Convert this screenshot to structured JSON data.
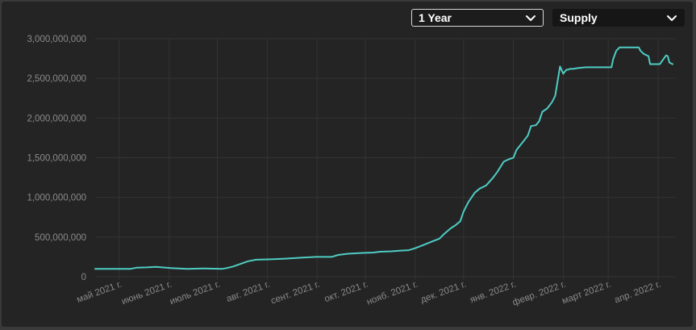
{
  "controls": {
    "range_label": "1 Year",
    "metric_label": "Supply"
  },
  "colors": {
    "background": "#242424",
    "line": "#4ecdc4",
    "grid": "#333333",
    "text": "#8a8a8a"
  },
  "chart_data": {
    "type": "line",
    "title": "",
    "xlabel": "",
    "ylabel": "",
    "ylim": [
      0,
      3000000000
    ],
    "y_ticks": [
      0,
      500000000,
      1000000000,
      1500000000,
      2000000000,
      2500000000,
      3000000000
    ],
    "y_tick_labels": [
      "0",
      "500,000,000",
      "1,000,000,000",
      "1,500,000,000",
      "2,000,000,000",
      "2,500,000,000",
      "3,000,000,000"
    ],
    "x_range": [
      "2021-04-16",
      "2022-04-12"
    ],
    "x_ticks": [
      "2021-05-01",
      "2021-06-01",
      "2021-07-01",
      "2021-08-01",
      "2021-09-01",
      "2021-10-01",
      "2021-11-01",
      "2021-12-01",
      "2022-01-01",
      "2022-02-01",
      "2022-03-01",
      "2022-04-01"
    ],
    "x_tick_labels": [
      "май 2021 г.",
      "июнь 2021 г.",
      "июль 2021 г.",
      "авг. 2021 г.",
      "сент. 2021 г.",
      "окт. 2021 г.",
      "нояб. 2021 г.",
      "дек. 2021 г.",
      "янв. 2022 г.",
      "февр. 2022 г.",
      "март 2022 г.",
      "апр. 2022 г."
    ],
    "grid": true,
    "series": [
      {
        "x": [
          "2021-04-16",
          "2021-05-08",
          "2021-05-12",
          "2021-05-18",
          "2021-05-24",
          "2021-06-02",
          "2021-06-12",
          "2021-06-22",
          "2021-07-04",
          "2021-07-07",
          "2021-07-11",
          "2021-07-15",
          "2021-07-20",
          "2021-07-25",
          "2021-08-03",
          "2021-08-12",
          "2021-08-22",
          "2021-08-31",
          "2021-09-10",
          "2021-09-14",
          "2021-09-20",
          "2021-09-29",
          "2021-10-06",
          "2021-10-10",
          "2021-10-17",
          "2021-10-23",
          "2021-10-28",
          "2021-11-01",
          "2021-11-06",
          "2021-11-11",
          "2021-11-16",
          "2021-11-19",
          "2021-11-23",
          "2021-11-26",
          "2021-11-29",
          "2021-12-01",
          "2021-12-04",
          "2021-12-08",
          "2021-12-11",
          "2021-12-15",
          "2021-12-19",
          "2021-12-22",
          "2021-12-26",
          "2021-12-29",
          "2022-01-01",
          "2022-01-03",
          "2022-01-07",
          "2022-01-10",
          "2022-01-12",
          "2022-01-15",
          "2022-01-17",
          "2022-01-19",
          "2022-01-22",
          "2022-01-25",
          "2022-01-27",
          "2022-01-30",
          "2022-02-01",
          "2022-02-03",
          "2022-02-04",
          "2022-02-05",
          "2022-02-06",
          "2022-02-07",
          "2022-02-10",
          "2022-02-15",
          "2022-02-20",
          "2022-02-25",
          "2022-03-03",
          "2022-03-04",
          "2022-03-06",
          "2022-03-08",
          "2022-03-15",
          "2022-03-20",
          "2022-03-21",
          "2022-03-23",
          "2022-03-26",
          "2022-03-27",
          "2022-03-30",
          "2022-04-02",
          "2022-04-06",
          "2022-04-07",
          "2022-04-08",
          "2022-04-10"
        ],
        "y": [
          100000000,
          100000000,
          115000000,
          118000000,
          125000000,
          110000000,
          100000000,
          105000000,
          100000000,
          110000000,
          130000000,
          160000000,
          195000000,
          215000000,
          220000000,
          228000000,
          240000000,
          250000000,
          250000000,
          275000000,
          290000000,
          300000000,
          305000000,
          315000000,
          320000000,
          330000000,
          335000000,
          360000000,
          400000000,
          440000000,
          480000000,
          540000000,
          610000000,
          650000000,
          700000000,
          820000000,
          940000000,
          1060000000,
          1110000000,
          1150000000,
          1240000000,
          1320000000,
          1450000000,
          1480000000,
          1500000000,
          1600000000,
          1700000000,
          1780000000,
          1900000000,
          1910000000,
          1960000000,
          2080000000,
          2120000000,
          2200000000,
          2280000000,
          2650000000,
          2560000000,
          2610000000,
          2610000000,
          2620000000,
          2620000000,
          2620000000,
          2630000000,
          2640000000,
          2640000000,
          2640000000,
          2640000000,
          2740000000,
          2850000000,
          2890000000,
          2890000000,
          2890000000,
          2850000000,
          2810000000,
          2780000000,
          2680000000,
          2680000000,
          2680000000,
          2790000000,
          2780000000,
          2700000000,
          2680000000
        ]
      }
    ]
  }
}
